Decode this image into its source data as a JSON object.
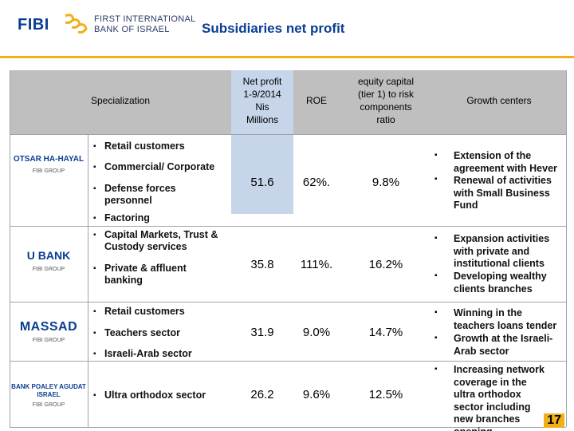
{
  "header": {
    "logo_text": "FIBI",
    "bank_name_line1": "FIRST INTERNATIONAL",
    "bank_name_line2": "BANK OF ISRAEL",
    "title": "Subsidiaries net profit"
  },
  "columns": {
    "specialization": "Specialization",
    "net_profit": [
      "Net profit",
      "1-9/2014",
      "Nis",
      "Millions"
    ],
    "roe": "ROE",
    "equity": [
      "equity capital",
      "(tier 1) to risk",
      "components",
      "ratio"
    ],
    "growth": "Growth centers"
  },
  "rows": [
    {
      "logo_text": "OTSAR HA-HAYAL",
      "logo_sub": "FIBI GROUP",
      "bullets": [
        "Retail customers",
        "Commercial/ Corporate",
        "Defense forces personnel",
        "Factoring"
      ],
      "net_profit": "51.6",
      "roe": "62%.",
      "equity": "9.8%",
      "growth": [
        "Extension of the agreement with Hever",
        "Renewal of activities with Small Business Fund"
      ]
    },
    {
      "logo_text": "U BANK",
      "logo_sub": "FIBI GROUP",
      "bullets": [
        "Capital Markets, Trust & Custody services",
        "Private & affluent banking"
      ],
      "net_profit": "35.8",
      "roe": "111%.",
      "equity": "16.2%",
      "growth": [
        "Expansion activities with private and institutional clients",
        "Developing wealthy clients branches"
      ]
    },
    {
      "logo_text": "MASSAD",
      "logo_sub": "FIBI GROUP",
      "bullets": [
        "Retail customers",
        "Teachers sector",
        "Israeli-Arab sector"
      ],
      "net_profit": "31.9",
      "roe": "9.0%",
      "equity": "14.7%",
      "growth": [
        "Winning in the teachers loans tender",
        "Growth at the Israeli-Arab sector"
      ]
    },
    {
      "logo_text": "BANK POALEY AGUDAT ISRAEL",
      "logo_sub": "FIBI GROUP",
      "bullets": [
        "Ultra orthodox sector"
      ],
      "net_profit": "26.2",
      "roe": "9.6%",
      "equity": "12.5%",
      "growth": [
        "Increasing network coverage in the ultra orthodox sector including new branches opening"
      ]
    }
  ],
  "page_number": "17",
  "colors": {
    "brand_blue": "#0b3d91",
    "accent_gold": "#f0b019",
    "header_grey": "#bfbfbf",
    "col_blue": "#c6d5ea"
  }
}
